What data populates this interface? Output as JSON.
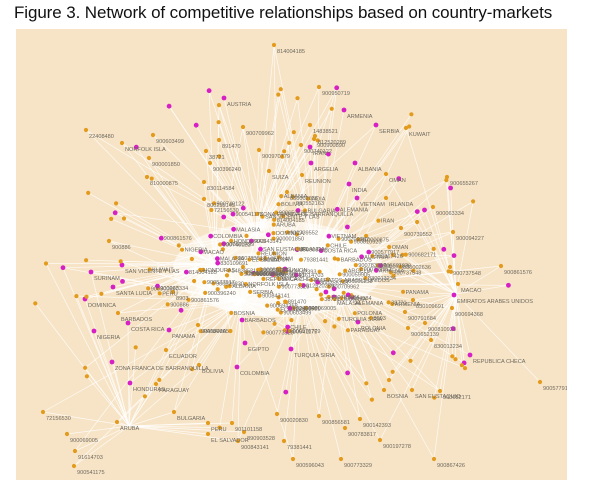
{
  "figure": {
    "title": "Figure 3. Network of competitive relationships based on country-markets"
  },
  "colors": {
    "background": "#f7e4c6",
    "edge": "#ffffff",
    "market_node": "#e39b1d",
    "country_node": "#d61fc4",
    "label": "#6f6a60"
  },
  "node_types": [
    "market-node",
    "country-node"
  ],
  "labels": [
    "814004185",
    "AUSTRIA",
    "900950719",
    "ARMENIA",
    "SERBIA",
    "KUWAIT",
    "22408480",
    "900603499",
    "NORFOLK ISLA",
    "891470",
    "900709962",
    "14838521",
    "900900890",
    "900001850",
    "38721",
    "900970779",
    "812520289",
    "900740122",
    "IRAN",
    "900396240",
    "ARGELIA",
    "ALBANIA",
    "810000875",
    "SUIZA",
    "REUNION",
    "OMAN",
    "INDIA",
    "900655267",
    "VIETNAM",
    "IRLANDA",
    "830114584",
    "830002636",
    "800255145",
    "900552163",
    "900063334",
    "CHILE",
    "900886",
    "900737548",
    "900861576",
    "SAN VICENTE Y LAS",
    "SURINAM",
    "SANTA LUCIA",
    "MACAO",
    "EMIRATOS ARABES UNIDOS",
    "DOMINICA",
    "BARBADOS",
    "900694368",
    "NIGERIA",
    "COSTA RICA",
    "PANAMA",
    "ECUADOR",
    "ZONA FRANCA DE BARRANQUILLA",
    "HONDURAS",
    "PARAGUAY",
    "BOLIVIA",
    "TURQUIA SIRIA",
    "COLOMBIA",
    "EGIPTO",
    "REPUBLICA CHECA",
    "900577917",
    "BULGARIA",
    "PERU",
    "72156530",
    "900069005",
    "ARUBA",
    "91614703",
    "900541175",
    "EL SALVADOR",
    "901101158",
    "890903528",
    "900843141",
    "79381441",
    "900596043",
    "900773329",
    "900867426",
    "900197278",
    "900142393",
    "900783817",
    "900856581",
    "900020830",
    "900682171",
    "BOSNIA",
    "SAN EUSTAQUIO",
    "ALEMANIA",
    "MALASIA",
    "POLONIA",
    "900810923",
    "900652139",
    "900791684",
    "830109691",
    "900094227",
    "900739552",
    "830013234",
    "8903",
    "900059905"
  ]
}
